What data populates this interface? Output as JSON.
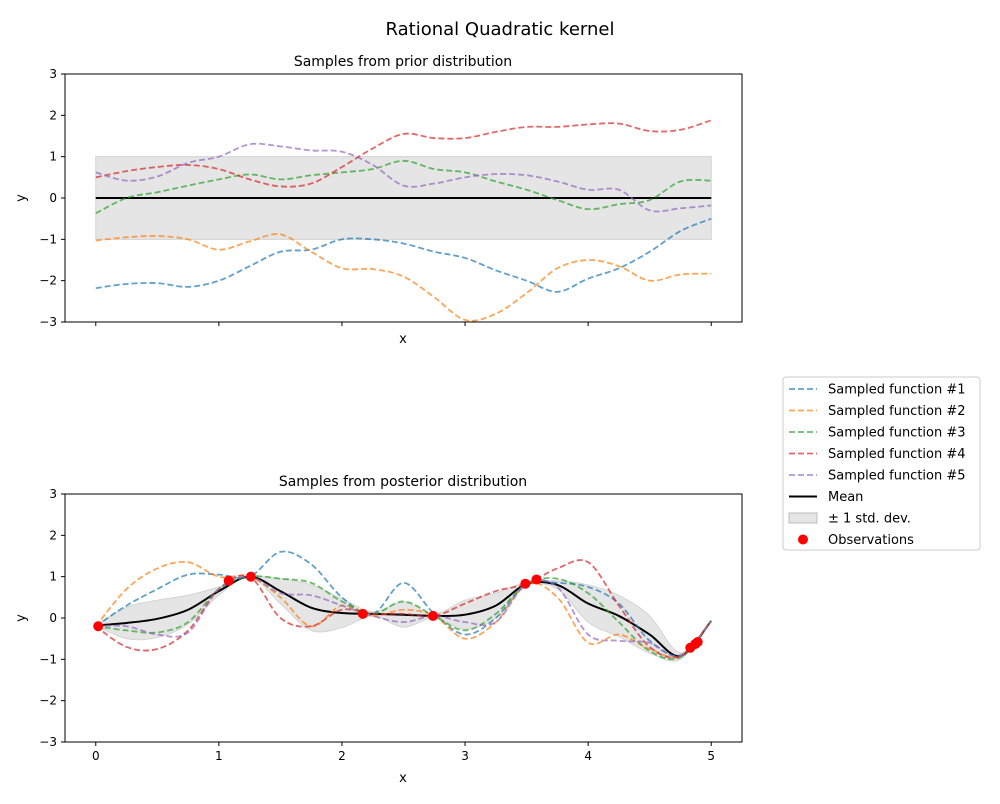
{
  "title": "Rational Quadratic kernel",
  "colors": {
    "s1": "#1f77b4",
    "s2": "#ff7f0e",
    "s3": "#2ca02c",
    "s4": "#d62728",
    "s5": "#9467bd",
    "mean": "#000000",
    "band": "#d3d3d3",
    "obs": "#ff0000"
  },
  "legend": {
    "placement": "right",
    "entries": [
      "Sampled function #1",
      "Sampled function #2",
      "Sampled function #3",
      "Sampled function #4",
      "Sampled function #5",
      "Mean",
      "± 1 std. dev.",
      "Observations"
    ]
  },
  "chart_data": [
    {
      "type": "line",
      "title": "Samples from prior distribution",
      "xlabel": "x",
      "ylabel": "y",
      "xlim": [
        -0.25,
        5.25
      ],
      "ylim": [
        -3,
        3
      ],
      "xticks": [
        0,
        1,
        2,
        3,
        4,
        5
      ],
      "xtick_labels_shown": false,
      "yticks": [
        -3,
        -2,
        -1,
        0,
        1,
        2,
        3
      ],
      "ytick_labels": [
        "−3",
        "−2",
        "−1",
        "0",
        "1",
        "2",
        "3"
      ],
      "x": [
        0,
        0.25,
        0.5,
        0.75,
        1,
        1.25,
        1.5,
        1.75,
        2,
        2.25,
        2.5,
        2.75,
        3,
        3.25,
        3.5,
        3.75,
        4,
        4.25,
        4.5,
        4.75,
        5
      ],
      "mean": [
        0,
        0,
        0,
        0,
        0,
        0,
        0,
        0,
        0,
        0,
        0,
        0,
        0,
        0,
        0,
        0,
        0,
        0,
        0,
        0,
        0
      ],
      "std": [
        1,
        1,
        1,
        1,
        1,
        1,
        1,
        1,
        1,
        1,
        1,
        1,
        1,
        1,
        1,
        1,
        1,
        1,
        1,
        1,
        1
      ],
      "series": [
        {
          "name": "Sampled function #1",
          "values": [
            -2.18,
            -2.08,
            -2.06,
            -2.15,
            -2.0,
            -1.65,
            -1.3,
            -1.25,
            -1.0,
            -1.0,
            -1.1,
            -1.3,
            -1.45,
            -1.75,
            -2.0,
            -2.27,
            -1.95,
            -1.7,
            -1.3,
            -0.8,
            -0.5
          ]
        },
        {
          "name": "Sampled function #2",
          "values": [
            -1.03,
            -0.95,
            -0.92,
            -1.0,
            -1.25,
            -1.05,
            -0.88,
            -1.3,
            -1.7,
            -1.72,
            -1.9,
            -2.4,
            -2.95,
            -2.8,
            -2.3,
            -1.7,
            -1.5,
            -1.65,
            -2.0,
            -1.85,
            -1.83
          ]
        },
        {
          "name": "Sampled function #3",
          "values": [
            -0.37,
            0.0,
            0.14,
            0.3,
            0.45,
            0.57,
            0.45,
            0.55,
            0.62,
            0.7,
            0.9,
            0.7,
            0.62,
            0.4,
            0.2,
            -0.05,
            -0.27,
            -0.15,
            -0.05,
            0.4,
            0.42
          ]
        },
        {
          "name": "Sampled function #4",
          "values": [
            0.5,
            0.65,
            0.75,
            0.8,
            0.7,
            0.45,
            0.28,
            0.35,
            0.75,
            1.2,
            1.55,
            1.45,
            1.45,
            1.6,
            1.72,
            1.72,
            1.78,
            1.8,
            1.62,
            1.65,
            1.88
          ]
        },
        {
          "name": "Sampled function #5",
          "values": [
            0.62,
            0.42,
            0.52,
            0.85,
            1.0,
            1.3,
            1.25,
            1.15,
            1.12,
            0.8,
            0.3,
            0.35,
            0.5,
            0.58,
            0.55,
            0.4,
            0.2,
            0.2,
            -0.3,
            -0.25,
            -0.18
          ]
        }
      ]
    },
    {
      "type": "line",
      "title": "Samples from posterior distribution",
      "xlabel": "x",
      "ylabel": "y",
      "xlim": [
        -0.25,
        5.25
      ],
      "ylim": [
        -3,
        3
      ],
      "xticks": [
        0,
        1,
        2,
        3,
        4,
        5
      ],
      "xtick_labels": [
        "0",
        "1",
        "2",
        "3",
        "4",
        "5"
      ],
      "yticks": [
        -3,
        -2,
        -1,
        0,
        1,
        2,
        3
      ],
      "ytick_labels": [
        "−3",
        "−2",
        "−1",
        "0",
        "1",
        "2",
        "3"
      ],
      "x": [
        0,
        0.25,
        0.5,
        0.75,
        1,
        1.25,
        1.5,
        1.75,
        2,
        2.25,
        2.5,
        2.75,
        3,
        3.25,
        3.5,
        3.75,
        4,
        4.25,
        4.5,
        4.75,
        5
      ],
      "mean": [
        -0.18,
        -0.12,
        -0.02,
        0.2,
        0.65,
        1.0,
        0.65,
        0.25,
        0.12,
        0.1,
        0.08,
        0.05,
        0.08,
        0.3,
        0.82,
        0.8,
        0.35,
        0.05,
        -0.4,
        -0.92,
        -0.07
      ],
      "std": [
        0,
        0.38,
        0.45,
        0.35,
        0.1,
        0,
        0.3,
        0.55,
        0.35,
        0.05,
        0.3,
        0.05,
        0.35,
        0.3,
        0.05,
        0.1,
        0.45,
        0.5,
        0.45,
        0.08,
        0
      ],
      "series": [
        {
          "name": "Sampled function #1",
          "values": [
            -0.2,
            0.3,
            0.7,
            1.05,
            1.05,
            1.0,
            1.6,
            1.3,
            0.5,
            0.1,
            0.85,
            0.1,
            -0.4,
            0.0,
            0.83,
            0.85,
            0.75,
            0.35,
            -0.55,
            -0.9,
            -0.07
          ]
        },
        {
          "name": "Sampled function #2",
          "values": [
            -0.2,
            0.7,
            1.2,
            1.35,
            1.0,
            1.0,
            0.5,
            -0.2,
            0.3,
            0.05,
            0.2,
            0.05,
            -0.5,
            -0.1,
            0.83,
            0.5,
            -0.6,
            -0.4,
            -0.75,
            -0.92,
            -0.07
          ]
        },
        {
          "name": "Sampled function #3",
          "values": [
            -0.2,
            -0.3,
            -0.35,
            -0.1,
            0.7,
            1.0,
            0.95,
            0.85,
            0.4,
            0.1,
            0.4,
            0.05,
            -0.3,
            0.1,
            0.83,
            0.95,
            0.6,
            -0.1,
            -0.8,
            -0.95,
            -0.07
          ]
        },
        {
          "name": "Sampled function #4",
          "values": [
            -0.2,
            -0.7,
            -0.75,
            -0.3,
            0.7,
            1.0,
            0.0,
            -0.2,
            0.2,
            0.1,
            0.1,
            0.05,
            0.35,
            0.65,
            0.83,
            1.2,
            1.35,
            0.3,
            -0.7,
            -0.92,
            -0.07
          ]
        },
        {
          "name": "Sampled function #5",
          "values": [
            -0.2,
            -0.2,
            -0.4,
            -0.35,
            0.7,
            1.0,
            0.6,
            0.55,
            0.3,
            0.05,
            -0.1,
            0.05,
            -0.1,
            -0.1,
            0.83,
            0.75,
            -0.4,
            -0.55,
            -0.6,
            -0.92,
            -0.07
          ]
        }
      ],
      "observations": {
        "x": [
          0.02,
          1.08,
          1.26,
          2.17,
          2.74,
          3.49,
          3.58,
          4.83,
          4.87,
          4.89
        ],
        "y": [
          -0.2,
          0.9,
          1.0,
          0.1,
          0.05,
          0.83,
          0.93,
          -0.72,
          -0.63,
          -0.58
        ]
      }
    }
  ]
}
